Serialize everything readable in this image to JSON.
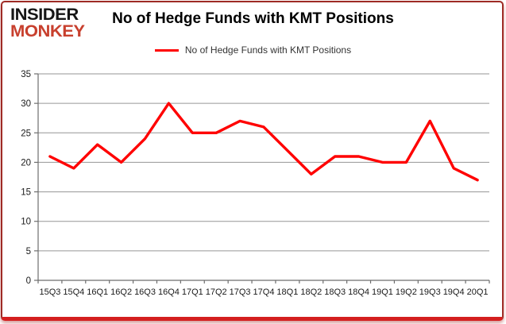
{
  "logo": {
    "line1": "INSIDER",
    "line2": "MONKEY"
  },
  "header": {
    "title": "No of Hedge Funds with KMT Positions"
  },
  "legend": {
    "label": "No of Hedge Funds with KMT Positions",
    "line_color": "#ff0000"
  },
  "chart_data": {
    "type": "line",
    "title": "No of Hedge Funds with KMT Positions",
    "categories": [
      "15Q3",
      "15Q4",
      "16Q1",
      "16Q2",
      "16Q3",
      "16Q4",
      "17Q1",
      "17Q2",
      "17Q3",
      "17Q4",
      "18Q1",
      "18Q2",
      "18Q3",
      "18Q4",
      "19Q1",
      "19Q2",
      "19Q3",
      "19Q4",
      "20Q1"
    ],
    "series": [
      {
        "name": "No of Hedge Funds with KMT Positions",
        "color": "#ff0000",
        "values": [
          21,
          19,
          23,
          20,
          24,
          30,
          25,
          25,
          27,
          26,
          22,
          18,
          21,
          21,
          20,
          20,
          27,
          19,
          17
        ]
      }
    ],
    "xlabel": "",
    "ylabel": "",
    "ylim": [
      0,
      35
    ],
    "yticks": [
      0,
      5,
      10,
      15,
      20,
      25,
      30,
      35
    ],
    "grid": true,
    "legend_position": "top-center"
  },
  "colors": {
    "series": "#ff0000",
    "gridline": "#969696",
    "axis": "#6e6e6e",
    "tick_label": "#1a1a1a",
    "frame_border": "#c0392b",
    "logo_insider": "#161616",
    "logo_monkey": "#c8402e"
  }
}
